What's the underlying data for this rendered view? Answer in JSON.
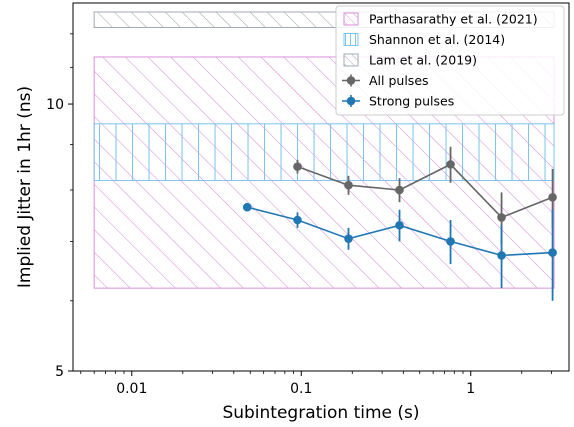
{
  "chart_data": {
    "type": "scatter",
    "xlabel": "Subintegration time (s)",
    "ylabel": "Implied Jitter in 1hr (ns)",
    "xscale": "log",
    "yscale": "log",
    "xlim": [
      0.0045,
      3.8
    ],
    "ylim": [
      5,
      13.0
    ],
    "xticks": [
      0.01,
      0.1,
      1
    ],
    "xtick_labels": [
      "0.01",
      "0.1",
      "1"
    ],
    "yticks": [
      5,
      10
    ],
    "ytick_labels": [
      "5",
      "10"
    ],
    "grid": false,
    "legend_position": "top-right",
    "bands": [
      {
        "name": "Parthasarathy et al. (2021)",
        "x_range": [
          0.006,
          3.1
        ],
        "y_range": [
          6.2,
          11.3
        ],
        "color": "#da8fdb",
        "hatch": "diagonal"
      },
      {
        "name": "Shannon et al. (2014)",
        "x_range": [
          0.006,
          3.1
        ],
        "y_range": [
          8.2,
          9.5
        ],
        "color": "#7ec4ee",
        "hatch": "vertical"
      },
      {
        "name": "Lam et al. (2019)",
        "x_range": [
          0.006,
          3.1
        ],
        "y_range": [
          12.2,
          12.7
        ],
        "color": "#a3a9b3",
        "hatch": "diagonal"
      }
    ],
    "series": [
      {
        "name": "All pulses",
        "color": "#666666",
        "x": [
          0.095,
          0.19,
          0.38,
          0.76,
          1.52,
          3.04
        ],
        "y": [
          8.5,
          8.1,
          8.0,
          8.55,
          7.45,
          7.85
        ],
        "err": [
          0.15,
          0.2,
          0.25,
          0.4,
          0.5,
          0.6
        ]
      },
      {
        "name": "Strong pulses",
        "color": "#1f77b4",
        "x": [
          0.048,
          0.095,
          0.19,
          0.38,
          0.76,
          1.52,
          3.04
        ],
        "y": [
          7.65,
          7.4,
          7.05,
          7.3,
          7.0,
          6.75,
          6.8
        ],
        "err": [
          0.05,
          0.15,
          0.2,
          0.3,
          0.4,
          0.55,
          0.8
        ]
      }
    ]
  }
}
